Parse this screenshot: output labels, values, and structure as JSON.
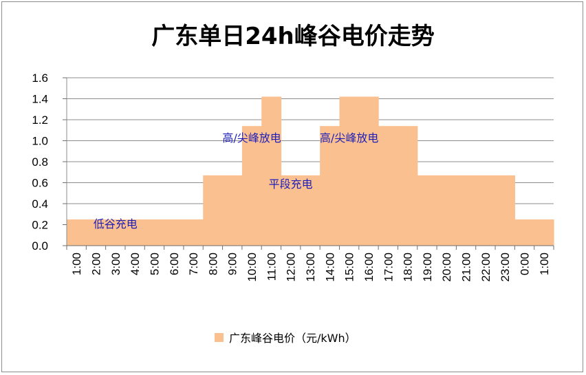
{
  "colors": {
    "bar": "#fac090",
    "grid": "#8c8c8c",
    "annotation": "#1f1fb8"
  },
  "chart_data": {
    "type": "bar",
    "title": "广东单日24h峰谷电价走势",
    "categories": [
      "1:00",
      "2:00",
      "3:00",
      "4:00",
      "5:00",
      "6:00",
      "7:00",
      "8:00",
      "9:00",
      "10:00",
      "11:00",
      "12:00",
      "13:00",
      "14:00",
      "15:00",
      "16:00",
      "17:00",
      "18:00",
      "19:00",
      "20:00",
      "21:00",
      "22:00",
      "23:00",
      "0:00",
      "1:00"
    ],
    "series": [
      {
        "name": "广东峰谷电价（元/kWh）",
        "values": [
          0.25,
          0.25,
          0.25,
          0.25,
          0.25,
          0.25,
          0.25,
          0.67,
          0.67,
          1.14,
          1.42,
          0.67,
          0.67,
          1.14,
          1.42,
          1.42,
          1.14,
          1.14,
          0.67,
          0.67,
          0.67,
          0.67,
          0.67,
          0.25,
          0.25
        ]
      }
    ],
    "ylim": [
      0,
      1.6
    ],
    "yticks": [
      "0.0",
      "0.2",
      "0.4",
      "0.6",
      "0.8",
      "1.0",
      "1.2",
      "1.4",
      "1.6"
    ],
    "grid": true,
    "legend_position": "bottom",
    "annotations": [
      {
        "text": "低谷充电",
        "x": "3:00",
        "y": 0.17
      },
      {
        "text": "高/尖峰放电",
        "x": "10:00",
        "y": 0.99
      },
      {
        "text": "平段充电",
        "x": "12:00",
        "y": 0.55
      },
      {
        "text": "高/尖峰放电",
        "x": "15:00",
        "y": 0.99
      }
    ]
  }
}
